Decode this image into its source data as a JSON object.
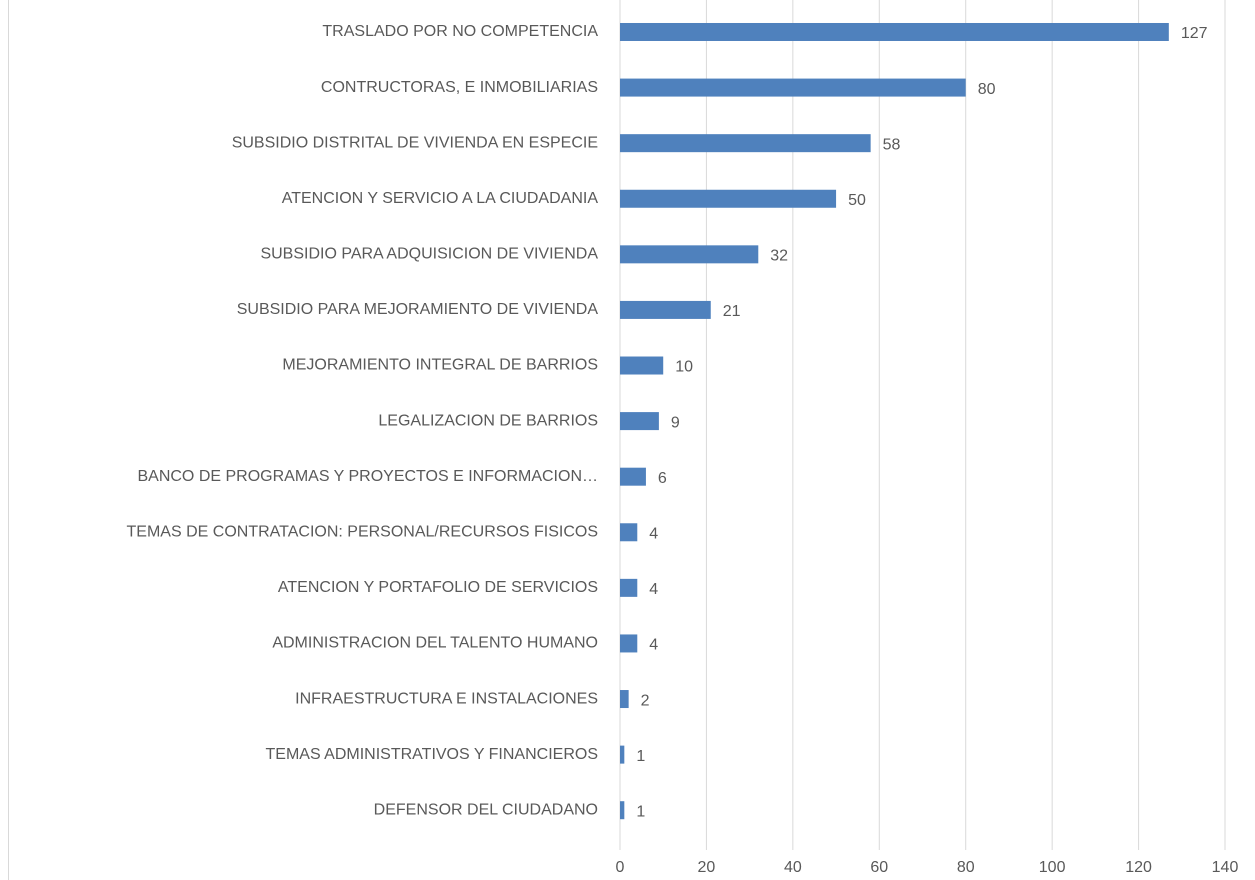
{
  "chart_data": {
    "type": "barh",
    "categories": [
      "TRASLADO POR NO COMPETENCIA",
      "CONTRUCTORAS, E INMOBILIARIAS",
      "SUBSIDIO DISTRITAL DE VIVIENDA EN ESPECIE",
      "ATENCION Y SERVICIO A LA CIUDADANIA",
      "SUBSIDIO PARA ADQUISICION DE VIVIENDA",
      "SUBSIDIO PARA MEJORAMIENTO DE VIVIENDA",
      "MEJORAMIENTO INTEGRAL DE BARRIOS",
      "LEGALIZACION DE BARRIOS",
      "BANCO DE PROGRAMAS Y PROYECTOS E INFORMACION…",
      "TEMAS DE CONTRATACION: PERSONAL/RECURSOS FISICOS",
      "ATENCION Y PORTAFOLIO DE SERVICIOS",
      "ADMINISTRACION DEL TALENTO HUMANO",
      "INFRAESTRUCTURA E INSTALACIONES",
      "TEMAS ADMINISTRATIVOS Y FINANCIEROS",
      "DEFENSOR DEL CIUDADANO"
    ],
    "values": [
      127,
      80,
      58,
      50,
      32,
      21,
      10,
      9,
      6,
      4,
      4,
      4,
      2,
      1,
      1
    ],
    "color": "#4f81bd",
    "xlim": [
      0,
      140
    ],
    "xticks": [
      0,
      20,
      40,
      60,
      80,
      100,
      120,
      140
    ],
    "grid": true
  }
}
